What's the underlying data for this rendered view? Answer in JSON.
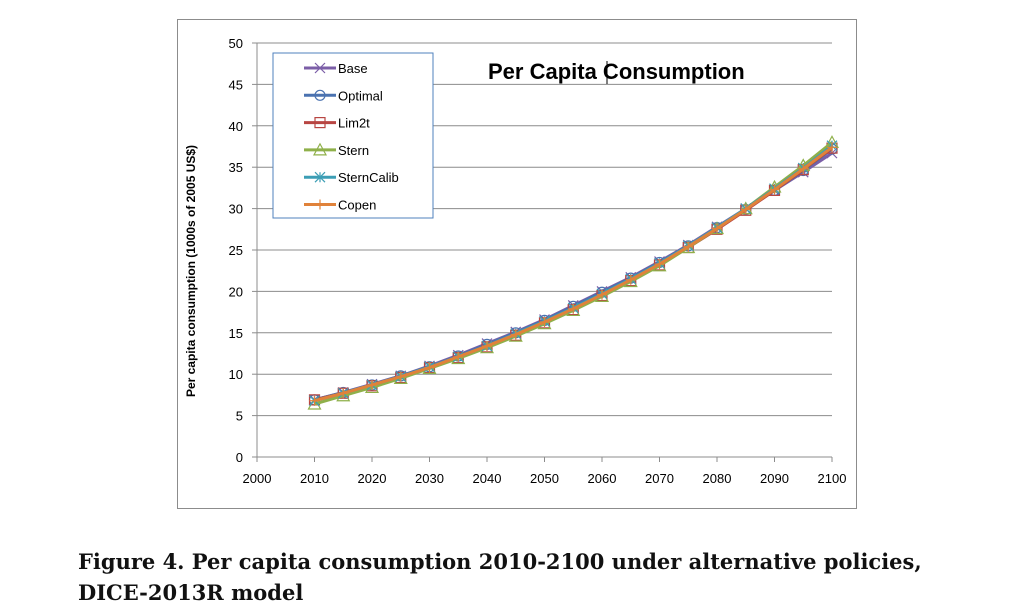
{
  "caption": "Figure 4. Per capita consumption 2010-2100 under alternative policies, DICE-2013R model",
  "chart_data": {
    "type": "line",
    "title": "Per Capita Consumption",
    "xlabel": "",
    "ylabel": "Per capita consumption (1000s of 2005 US$)",
    "xlim": [
      2000,
      2100
    ],
    "ylim": [
      0,
      50
    ],
    "xticks": [
      "2000",
      "2010",
      "2020",
      "2030",
      "2040",
      "2050",
      "2060",
      "2070",
      "2080",
      "2090",
      "2100"
    ],
    "yticks": [
      "0",
      "5",
      "10",
      "15",
      "20",
      "25",
      "30",
      "35",
      "40",
      "45",
      "50"
    ],
    "grid": "horizontal",
    "legend_position": "top-left",
    "x": [
      2010,
      2015,
      2020,
      2025,
      2030,
      2035,
      2040,
      2045,
      2050,
      2055,
      2060,
      2065,
      2070,
      2075,
      2080,
      2085,
      2090,
      2095,
      2100
    ],
    "series": [
      {
        "name": "Base",
        "color": "#7b5ea7",
        "marker": "x",
        "values": [
          6.9,
          7.8,
          8.8,
          9.8,
          11.0,
          12.3,
          13.7,
          15.1,
          16.6,
          18.3,
          20.0,
          21.7,
          23.6,
          25.6,
          27.8,
          30.0,
          32.2,
          34.4,
          36.7
        ]
      },
      {
        "name": "Optimal",
        "color": "#4a72b0",
        "marker": "circle",
        "values": [
          6.9,
          7.8,
          8.7,
          9.8,
          10.9,
          12.2,
          13.6,
          15.0,
          16.5,
          18.2,
          19.9,
          21.6,
          23.5,
          25.5,
          27.7,
          29.9,
          32.2,
          34.6,
          37.2
        ]
      },
      {
        "name": "Lim2t",
        "color": "#b84542",
        "marker": "square",
        "values": [
          6.9,
          7.7,
          8.6,
          9.6,
          10.8,
          12.0,
          13.3,
          14.7,
          16.2,
          17.8,
          19.5,
          21.3,
          23.2,
          25.3,
          27.5,
          29.8,
          32.2,
          34.7,
          37.3
        ]
      },
      {
        "name": "Stern",
        "color": "#8fb04a",
        "marker": "triangle",
        "values": [
          6.4,
          7.4,
          8.4,
          9.5,
          10.7,
          11.9,
          13.2,
          14.6,
          16.1,
          17.7,
          19.4,
          21.2,
          23.1,
          25.3,
          27.6,
          30.0,
          32.6,
          35.2,
          38.0
        ]
      },
      {
        "name": "SternCalib",
        "color": "#3c9eb5",
        "marker": "asterisk",
        "values": [
          6.8,
          7.7,
          8.7,
          9.7,
          10.9,
          12.1,
          13.4,
          14.9,
          16.4,
          18.0,
          19.7,
          21.5,
          23.4,
          25.5,
          27.7,
          30.0,
          32.4,
          34.9,
          37.6
        ]
      },
      {
        "name": "Copen",
        "color": "#e0823a",
        "marker": "plus",
        "values": [
          6.8,
          7.7,
          8.7,
          9.7,
          10.8,
          12.1,
          13.4,
          14.8,
          16.3,
          17.9,
          19.6,
          21.4,
          23.3,
          25.4,
          27.6,
          29.9,
          32.3,
          34.8,
          37.4
        ]
      }
    ]
  }
}
